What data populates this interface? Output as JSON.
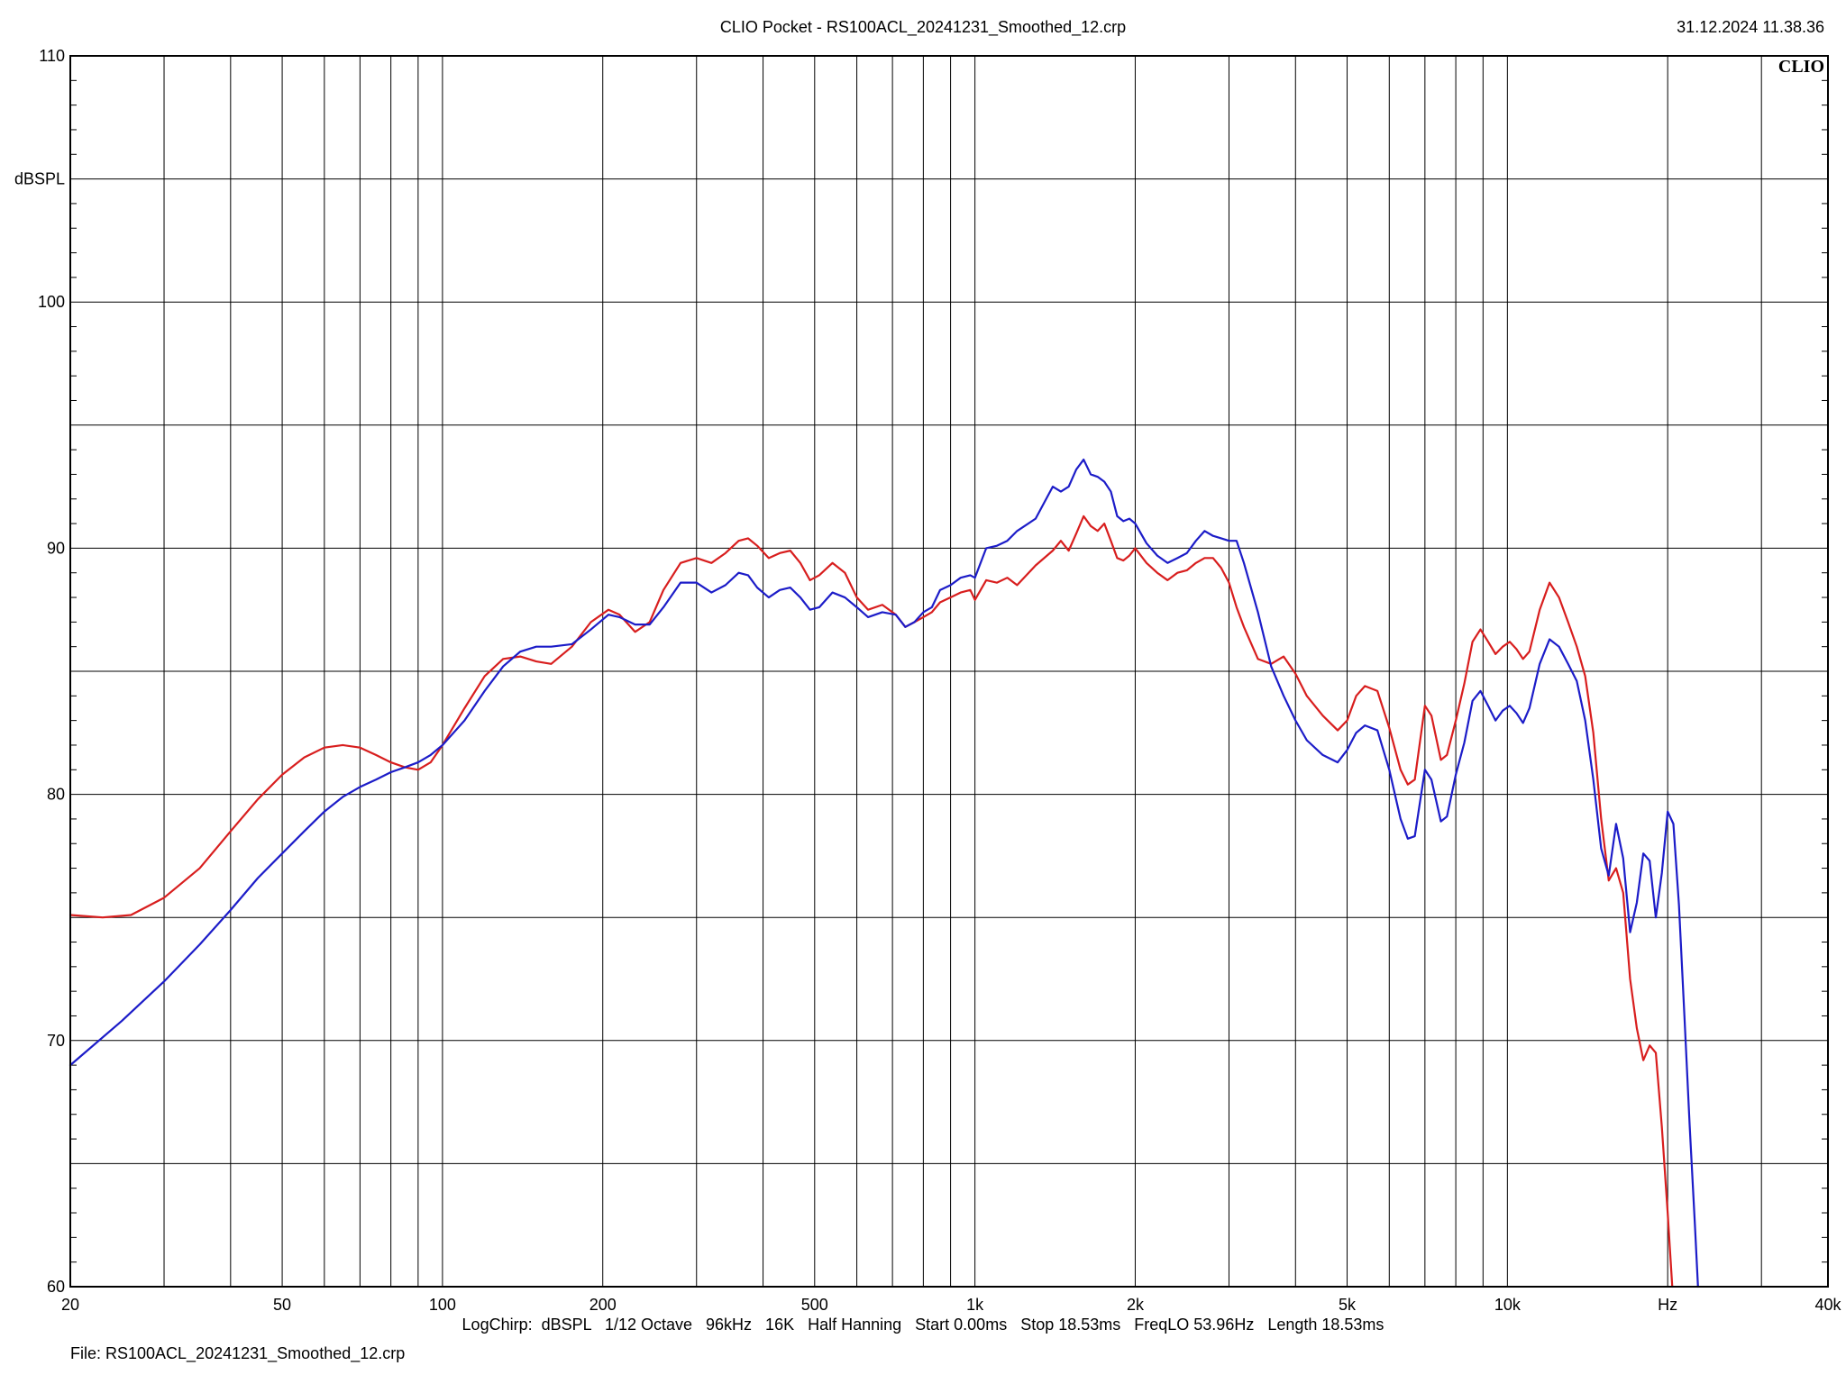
{
  "header": {
    "title": "CLIO Pocket - RS100ACL_20241231_Smoothed_12.crp",
    "timestamp": "31.12.2024 11.38.36"
  },
  "footer": {
    "settings": "LogChirp:  dBSPL   1/12 Octave   96kHz   16K   Half Hanning   Start 0.00ms   Stop 18.53ms   FreqLO 53.96Hz   Length 18.53ms",
    "file": "File: RS100ACL_20241231_Smoothed_12.crp"
  },
  "colors": {
    "red": "#d81e1e",
    "blue": "#1c1cc8",
    "grid": "#000000"
  },
  "chart_data": {
    "type": "line",
    "xscale": "log",
    "xlim": [
      20,
      40000
    ],
    "ylim": [
      60,
      110
    ],
    "ylabel": "dBSPL",
    "xunit": "Hz",
    "watermark": "CLIO",
    "grid": true,
    "xticks": [
      {
        "v": 20,
        "label": "20"
      },
      {
        "v": 50,
        "label": "50"
      },
      {
        "v": 100,
        "label": "100"
      },
      {
        "v": 200,
        "label": "200"
      },
      {
        "v": 500,
        "label": "500"
      },
      {
        "v": 1000,
        "label": "1k"
      },
      {
        "v": 2000,
        "label": "2k"
      },
      {
        "v": 5000,
        "label": "5k"
      },
      {
        "v": 10000,
        "label": "10k"
      },
      {
        "v": 20000,
        "label": "Hz"
      },
      {
        "v": 40000,
        "label": "40k"
      }
    ],
    "yticks": [
      {
        "v": 110,
        "label": "110"
      },
      {
        "v": 100,
        "label": "100"
      },
      {
        "v": 90,
        "label": "90"
      },
      {
        "v": 80,
        "label": "80"
      },
      {
        "v": 70,
        "label": "70"
      },
      {
        "v": 60,
        "label": "60"
      }
    ],
    "series": [
      {
        "color": "#d81e1e",
        "points": [
          [
            20,
            75.1
          ],
          [
            23,
            75.0
          ],
          [
            26,
            75.1
          ],
          [
            30,
            75.8
          ],
          [
            35,
            77.0
          ],
          [
            40,
            78.5
          ],
          [
            45,
            79.8
          ],
          [
            50,
            80.8
          ],
          [
            55,
            81.5
          ],
          [
            60,
            81.9
          ],
          [
            65,
            82.0
          ],
          [
            70,
            81.9
          ],
          [
            75,
            81.6
          ],
          [
            80,
            81.3
          ],
          [
            85,
            81.1
          ],
          [
            90,
            81.0
          ],
          [
            95,
            81.3
          ],
          [
            100,
            82.0
          ],
          [
            110,
            83.5
          ],
          [
            120,
            84.8
          ],
          [
            130,
            85.5
          ],
          [
            140,
            85.6
          ],
          [
            150,
            85.4
          ],
          [
            160,
            85.3
          ],
          [
            175,
            86.0
          ],
          [
            190,
            87.0
          ],
          [
            205,
            87.5
          ],
          [
            215,
            87.3
          ],
          [
            230,
            86.6
          ],
          [
            245,
            87.0
          ],
          [
            260,
            88.3
          ],
          [
            280,
            89.4
          ],
          [
            300,
            89.6
          ],
          [
            320,
            89.4
          ],
          [
            340,
            89.8
          ],
          [
            360,
            90.3
          ],
          [
            375,
            90.4
          ],
          [
            390,
            90.1
          ],
          [
            410,
            89.6
          ],
          [
            430,
            89.8
          ],
          [
            450,
            89.9
          ],
          [
            470,
            89.4
          ],
          [
            490,
            88.7
          ],
          [
            510,
            88.9
          ],
          [
            540,
            89.4
          ],
          [
            570,
            89.0
          ],
          [
            600,
            88.0
          ],
          [
            630,
            87.5
          ],
          [
            670,
            87.7
          ],
          [
            710,
            87.3
          ],
          [
            740,
            86.8
          ],
          [
            770,
            87.0
          ],
          [
            800,
            87.2
          ],
          [
            830,
            87.4
          ],
          [
            860,
            87.8
          ],
          [
            900,
            88.0
          ],
          [
            940,
            88.2
          ],
          [
            980,
            88.3
          ],
          [
            1000,
            87.9
          ],
          [
            1050,
            88.7
          ],
          [
            1100,
            88.6
          ],
          [
            1150,
            88.8
          ],
          [
            1200,
            88.5
          ],
          [
            1300,
            89.3
          ],
          [
            1400,
            89.9
          ],
          [
            1450,
            90.3
          ],
          [
            1500,
            89.9
          ],
          [
            1550,
            90.6
          ],
          [
            1600,
            91.3
          ],
          [
            1650,
            90.9
          ],
          [
            1700,
            90.7
          ],
          [
            1750,
            91.0
          ],
          [
            1800,
            90.3
          ],
          [
            1850,
            89.6
          ],
          [
            1900,
            89.5
          ],
          [
            1950,
            89.7
          ],
          [
            2000,
            90.0
          ],
          [
            2100,
            89.4
          ],
          [
            2200,
            89.0
          ],
          [
            2300,
            88.7
          ],
          [
            2400,
            89.0
          ],
          [
            2500,
            89.1
          ],
          [
            2600,
            89.4
          ],
          [
            2700,
            89.6
          ],
          [
            2800,
            89.6
          ],
          [
            2900,
            89.2
          ],
          [
            3000,
            88.6
          ],
          [
            3100,
            87.6
          ],
          [
            3200,
            86.8
          ],
          [
            3400,
            85.5
          ],
          [
            3600,
            85.3
          ],
          [
            3800,
            85.6
          ],
          [
            4000,
            84.9
          ],
          [
            4200,
            84.0
          ],
          [
            4500,
            83.2
          ],
          [
            4800,
            82.6
          ],
          [
            5000,
            83.0
          ],
          [
            5200,
            84.0
          ],
          [
            5400,
            84.4
          ],
          [
            5700,
            84.2
          ],
          [
            6000,
            82.7
          ],
          [
            6300,
            81.0
          ],
          [
            6500,
            80.4
          ],
          [
            6700,
            80.6
          ],
          [
            7000,
            83.6
          ],
          [
            7200,
            83.2
          ],
          [
            7500,
            81.4
          ],
          [
            7700,
            81.6
          ],
          [
            8000,
            83.0
          ],
          [
            8300,
            84.5
          ],
          [
            8600,
            86.2
          ],
          [
            8900,
            86.7
          ],
          [
            9200,
            86.2
          ],
          [
            9500,
            85.7
          ],
          [
            9800,
            86.0
          ],
          [
            10100,
            86.2
          ],
          [
            10400,
            85.9
          ],
          [
            10700,
            85.5
          ],
          [
            11000,
            85.8
          ],
          [
            11500,
            87.5
          ],
          [
            12000,
            88.6
          ],
          [
            12500,
            88.0
          ],
          [
            13000,
            87.0
          ],
          [
            13500,
            86.0
          ],
          [
            14000,
            84.8
          ],
          [
            14500,
            82.5
          ],
          [
            15000,
            79.0
          ],
          [
            15500,
            76.5
          ],
          [
            16000,
            77.0
          ],
          [
            16500,
            76.0
          ],
          [
            17000,
            72.5
          ],
          [
            17500,
            70.5
          ],
          [
            18000,
            69.2
          ],
          [
            18500,
            69.8
          ],
          [
            19000,
            69.5
          ],
          [
            19500,
            66.5
          ],
          [
            20000,
            63.0
          ],
          [
            20400,
            60.0
          ]
        ]
      },
      {
        "color": "#1c1cc8",
        "points": [
          [
            20,
            69.0
          ],
          [
            25,
            70.8
          ],
          [
            30,
            72.4
          ],
          [
            35,
            73.9
          ],
          [
            40,
            75.3
          ],
          [
            45,
            76.6
          ],
          [
            50,
            77.6
          ],
          [
            55,
            78.5
          ],
          [
            60,
            79.3
          ],
          [
            65,
            79.9
          ],
          [
            70,
            80.3
          ],
          [
            75,
            80.6
          ],
          [
            80,
            80.9
          ],
          [
            85,
            81.1
          ],
          [
            90,
            81.3
          ],
          [
            95,
            81.6
          ],
          [
            100,
            82.0
          ],
          [
            110,
            83.0
          ],
          [
            120,
            84.2
          ],
          [
            130,
            85.2
          ],
          [
            140,
            85.8
          ],
          [
            150,
            86.0
          ],
          [
            160,
            86.0
          ],
          [
            175,
            86.1
          ],
          [
            190,
            86.7
          ],
          [
            205,
            87.3
          ],
          [
            215,
            87.2
          ],
          [
            230,
            86.9
          ],
          [
            245,
            86.9
          ],
          [
            260,
            87.6
          ],
          [
            280,
            88.6
          ],
          [
            300,
            88.6
          ],
          [
            320,
            88.2
          ],
          [
            340,
            88.5
          ],
          [
            360,
            89.0
          ],
          [
            375,
            88.9
          ],
          [
            390,
            88.4
          ],
          [
            410,
            88.0
          ],
          [
            430,
            88.3
          ],
          [
            450,
            88.4
          ],
          [
            470,
            88.0
          ],
          [
            490,
            87.5
          ],
          [
            510,
            87.6
          ],
          [
            540,
            88.2
          ],
          [
            570,
            88.0
          ],
          [
            600,
            87.6
          ],
          [
            630,
            87.2
          ],
          [
            670,
            87.4
          ],
          [
            710,
            87.3
          ],
          [
            740,
            86.8
          ],
          [
            770,
            87.0
          ],
          [
            800,
            87.4
          ],
          [
            830,
            87.6
          ],
          [
            860,
            88.3
          ],
          [
            900,
            88.5
          ],
          [
            940,
            88.8
          ],
          [
            980,
            88.9
          ],
          [
            1000,
            88.8
          ],
          [
            1050,
            90.0
          ],
          [
            1100,
            90.1
          ],
          [
            1150,
            90.3
          ],
          [
            1200,
            90.7
          ],
          [
            1300,
            91.2
          ],
          [
            1400,
            92.5
          ],
          [
            1450,
            92.3
          ],
          [
            1500,
            92.5
          ],
          [
            1550,
            93.2
          ],
          [
            1600,
            93.6
          ],
          [
            1650,
            93.0
          ],
          [
            1700,
            92.9
          ],
          [
            1750,
            92.7
          ],
          [
            1800,
            92.3
          ],
          [
            1850,
            91.3
          ],
          [
            1900,
            91.1
          ],
          [
            1950,
            91.2
          ],
          [
            2000,
            91.0
          ],
          [
            2100,
            90.2
          ],
          [
            2200,
            89.7
          ],
          [
            2300,
            89.4
          ],
          [
            2400,
            89.6
          ],
          [
            2500,
            89.8
          ],
          [
            2600,
            90.3
          ],
          [
            2700,
            90.7
          ],
          [
            2800,
            90.5
          ],
          [
            2900,
            90.4
          ],
          [
            3000,
            90.3
          ],
          [
            3100,
            90.3
          ],
          [
            3200,
            89.4
          ],
          [
            3400,
            87.4
          ],
          [
            3600,
            85.2
          ],
          [
            3800,
            84.0
          ],
          [
            4000,
            83.0
          ],
          [
            4200,
            82.2
          ],
          [
            4500,
            81.6
          ],
          [
            4800,
            81.3
          ],
          [
            5000,
            81.8
          ],
          [
            5200,
            82.5
          ],
          [
            5400,
            82.8
          ],
          [
            5700,
            82.6
          ],
          [
            6000,
            81.0
          ],
          [
            6300,
            79.0
          ],
          [
            6500,
            78.2
          ],
          [
            6700,
            78.3
          ],
          [
            7000,
            81.0
          ],
          [
            7200,
            80.6
          ],
          [
            7500,
            78.9
          ],
          [
            7700,
            79.1
          ],
          [
            8000,
            80.8
          ],
          [
            8300,
            82.1
          ],
          [
            8600,
            83.8
          ],
          [
            8900,
            84.2
          ],
          [
            9200,
            83.6
          ],
          [
            9500,
            83.0
          ],
          [
            9800,
            83.4
          ],
          [
            10100,
            83.6
          ],
          [
            10400,
            83.3
          ],
          [
            10700,
            82.9
          ],
          [
            11000,
            83.5
          ],
          [
            11500,
            85.3
          ],
          [
            12000,
            86.3
          ],
          [
            12500,
            86.0
          ],
          [
            13000,
            85.3
          ],
          [
            13500,
            84.6
          ],
          [
            14000,
            83.0
          ],
          [
            14500,
            80.6
          ],
          [
            15000,
            77.8
          ],
          [
            15500,
            76.7
          ],
          [
            16000,
            78.8
          ],
          [
            16500,
            77.4
          ],
          [
            17000,
            74.4
          ],
          [
            17500,
            75.6
          ],
          [
            18000,
            77.6
          ],
          [
            18500,
            77.3
          ],
          [
            19000,
            75.0
          ],
          [
            19500,
            76.8
          ],
          [
            20000,
            79.3
          ],
          [
            20500,
            78.8
          ],
          [
            21000,
            75.5
          ],
          [
            21500,
            71.0
          ],
          [
            22000,
            66.5
          ],
          [
            22500,
            62.5
          ],
          [
            22800,
            60.0
          ]
        ]
      }
    ]
  }
}
